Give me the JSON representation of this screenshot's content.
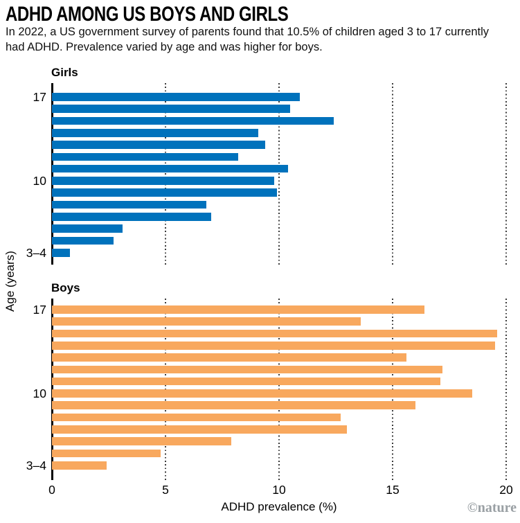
{
  "header": {
    "title": "ADHD AMONG US BOYS AND GIRLS",
    "subtitle": "In 2022, a US government survey of parents found that 10.5% of children aged 3 to 17 currently had ADHD. Prevalence varied by age and was higher for boys."
  },
  "axes": {
    "x_label": "ADHD prevalence (%)",
    "y_label": "Age (years)",
    "x_ticks": [
      "0",
      "5",
      "10",
      "15",
      "20"
    ]
  },
  "credit": "©nature",
  "colors": {
    "girls_bar": "#0072BC",
    "boys_bar": "#F8A85E",
    "gridline": "#3a3a3a",
    "credit_gray": "#9aa0a4"
  },
  "chart_data": [
    {
      "type": "bar",
      "orientation": "horizontal",
      "title": "Girls",
      "categories": [
        "17",
        "16",
        "15",
        "14",
        "13",
        "12",
        "11",
        "10",
        "9",
        "8",
        "7",
        "6",
        "5",
        "3–4"
      ],
      "values": [
        10.9,
        10.5,
        12.4,
        9.1,
        9.4,
        8.2,
        10.4,
        9.8,
        9.9,
        6.8,
        7.0,
        3.1,
        2.7,
        0.8
      ],
      "color": "#0072BC",
      "xlim": [
        0,
        20
      ],
      "xticks": [
        0,
        5,
        10,
        15,
        20
      ],
      "grid": "dotted-vertical",
      "visible_y_ticks": [
        {
          "index": 0,
          "label": "17"
        },
        {
          "index": 7,
          "label": "10"
        },
        {
          "index": 13,
          "label": "3–4"
        }
      ]
    },
    {
      "type": "bar",
      "orientation": "horizontal",
      "title": "Boys",
      "categories": [
        "17",
        "16",
        "15",
        "14",
        "13",
        "12",
        "11",
        "10",
        "9",
        "8",
        "7",
        "6",
        "5",
        "3–4"
      ],
      "values": [
        16.4,
        13.6,
        19.6,
        19.5,
        15.6,
        17.2,
        17.1,
        18.5,
        16.0,
        12.7,
        13.0,
        7.9,
        4.8,
        2.4
      ],
      "color": "#F8A85E",
      "xlim": [
        0,
        20
      ],
      "xticks": [
        0,
        5,
        10,
        15,
        20
      ],
      "grid": "dotted-vertical",
      "visible_y_ticks": [
        {
          "index": 0,
          "label": "17"
        },
        {
          "index": 7,
          "label": "10"
        },
        {
          "index": 13,
          "label": "3–4"
        }
      ]
    }
  ]
}
